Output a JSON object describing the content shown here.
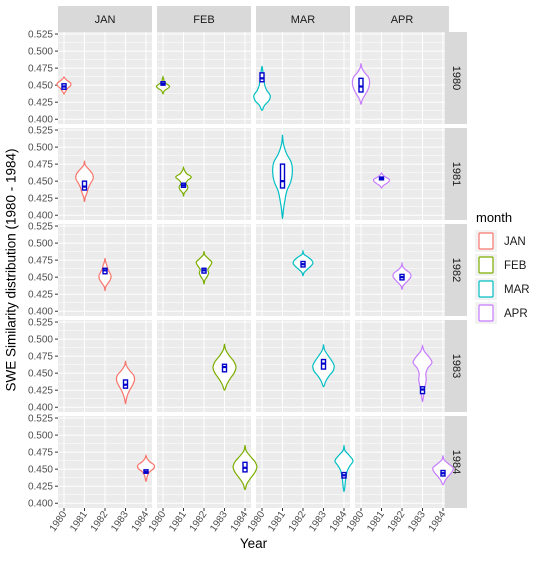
{
  "chart_data": {
    "type": "violin",
    "xlabel": "Year",
    "ylabel": "SWE Similarity distribution (1980 - 1984)",
    "ylim": [
      0.393,
      0.528
    ],
    "y_ticks": [
      "0.400",
      "0.425",
      "0.450",
      "0.475",
      "0.500",
      "0.525"
    ],
    "x_categories": [
      "1980",
      "1981",
      "1982",
      "1983",
      "1984"
    ],
    "column_facets": [
      "JAN",
      "FEB",
      "MAR",
      "APR"
    ],
    "row_facets": [
      "1980",
      "1981",
      "1982",
      "1983",
      "1984"
    ],
    "legend": {
      "title": "month",
      "position": "right",
      "entries": [
        {
          "label": "JAN",
          "color": "#F8766D"
        },
        {
          "label": "FEB",
          "color": "#7CAE00"
        },
        {
          "label": "MAR",
          "color": "#00BFC4"
        },
        {
          "label": "APR",
          "color": "#C77CFF"
        }
      ]
    },
    "box_color": "#0000CC",
    "panel_background": "#EBEBEB",
    "grid_color": "#FFFFFF",
    "strip_background": "#D9D9D9",
    "violins": [
      {
        "row": "1980",
        "month": "JAN",
        "x": "1980",
        "min": 0.437,
        "max": 0.462,
        "q1": 0.444,
        "median": 0.448,
        "q3": 0.452,
        "halfwidth": 0.34,
        "dens": [
          0.2,
          0.5,
          0.9,
          1,
          0.85,
          0.5,
          0.35,
          0.15
        ]
      },
      {
        "row": "1980",
        "month": "FEB",
        "x": "1980",
        "min": 0.437,
        "max": 0.462,
        "q1": 0.45,
        "median": 0.452,
        "q3": 0.455,
        "halfwidth": 0.32,
        "dens": [
          0.1,
          0.15,
          0.3,
          0.7,
          1,
          0.75,
          0.3,
          0.1
        ]
      },
      {
        "row": "1980",
        "month": "MAR",
        "x": "1980",
        "min": 0.413,
        "max": 0.478,
        "q1": 0.455,
        "median": 0.46,
        "q3": 0.468,
        "halfwidth": 0.4,
        "dens": [
          0.1,
          0.15,
          0.25,
          0.35,
          0.6,
          1,
          0.85,
          0.3
        ]
      },
      {
        "row": "1980",
        "month": "APR",
        "x": "1980",
        "min": 0.422,
        "max": 0.482,
        "q1": 0.44,
        "median": 0.448,
        "q3": 0.46,
        "halfwidth": 0.42,
        "dens": [
          0.1,
          0.4,
          0.85,
          1,
          0.95,
          0.75,
          0.45,
          0.15
        ]
      },
      {
        "row": "1981",
        "month": "JAN",
        "x": "1981",
        "min": 0.42,
        "max": 0.48,
        "q1": 0.437,
        "median": 0.442,
        "q3": 0.45,
        "halfwidth": 0.42,
        "dens": [
          0.1,
          0.55,
          0.95,
          1,
          0.7,
          0.45,
          0.3,
          0.1
        ]
      },
      {
        "row": "1981",
        "month": "FEB",
        "x": "1981",
        "min": 0.428,
        "max": 0.47,
        "q1": 0.441,
        "median": 0.444,
        "q3": 0.447,
        "halfwidth": 0.38,
        "dens": [
          0.15,
          0.45,
          1,
          0.55,
          0.3,
          0.55,
          0.45,
          0.1
        ]
      },
      {
        "row": "1981",
        "month": "MAR",
        "x": "1981",
        "min": 0.395,
        "max": 0.518,
        "q1": 0.44,
        "median": 0.45,
        "q3": 0.475,
        "halfwidth": 0.48,
        "dens": [
          0.1,
          0.4,
          0.9,
          1,
          0.85,
          0.45,
          0.25,
          0.1
        ]
      },
      {
        "row": "1981",
        "month": "APR",
        "x": "1981",
        "min": 0.44,
        "max": 0.462,
        "q1": 0.452,
        "median": 0.454,
        "q3": 0.456,
        "halfwidth": 0.38,
        "dens": [
          0.2,
          0.55,
          1,
          0.95,
          0.6,
          0.2
        ]
      },
      {
        "row": "1982",
        "month": "JAN",
        "x": "1982",
        "min": 0.43,
        "max": 0.478,
        "q1": 0.455,
        "median": 0.46,
        "q3": 0.463,
        "halfwidth": 0.3,
        "dens": [
          0.1,
          0.3,
          0.45,
          0.75,
          1,
          0.85,
          0.45,
          0.1
        ]
      },
      {
        "row": "1982",
        "month": "FEB",
        "x": "1982",
        "min": 0.44,
        "max": 0.488,
        "q1": 0.456,
        "median": 0.46,
        "q3": 0.463,
        "halfwidth": 0.38,
        "dens": [
          0.1,
          0.55,
          1,
          0.8,
          0.5,
          0.6,
          0.4,
          0.1
        ]
      },
      {
        "row": "1982",
        "month": "MAR",
        "x": "1982",
        "min": 0.452,
        "max": 0.488,
        "q1": 0.465,
        "median": 0.469,
        "q3": 0.473,
        "halfwidth": 0.48,
        "dens": [
          0.1,
          0.55,
          0.9,
          1,
          0.75,
          0.4,
          0.1
        ]
      },
      {
        "row": "1982",
        "month": "APR",
        "x": "1982",
        "min": 0.432,
        "max": 0.47,
        "q1": 0.446,
        "median": 0.45,
        "q3": 0.454,
        "halfwidth": 0.44,
        "dens": [
          0.1,
          0.45,
          0.9,
          1,
          0.75,
          0.4,
          0.1
        ]
      },
      {
        "row": "1983",
        "month": "JAN",
        "x": "1983",
        "min": 0.405,
        "max": 0.468,
        "q1": 0.428,
        "median": 0.433,
        "q3": 0.44,
        "halfwidth": 0.44,
        "dens": [
          0.1,
          0.45,
          0.9,
          1,
          0.8,
          0.5,
          0.25,
          0.1
        ]
      },
      {
        "row": "1983",
        "month": "FEB",
        "x": "1983",
        "min": 0.425,
        "max": 0.493,
        "q1": 0.452,
        "median": 0.459,
        "q3": 0.463,
        "halfwidth": 0.56,
        "dens": [
          0.1,
          0.4,
          0.8,
          1,
          0.85,
          0.5,
          0.2
        ]
      },
      {
        "row": "1983",
        "month": "MAR",
        "x": "1983",
        "min": 0.43,
        "max": 0.492,
        "q1": 0.456,
        "median": 0.464,
        "q3": 0.47,
        "halfwidth": 0.52,
        "dens": [
          0.1,
          0.4,
          0.75,
          1,
          0.9,
          0.5,
          0.2
        ]
      },
      {
        "row": "1983",
        "month": "APR",
        "x": "1983",
        "min": 0.408,
        "max": 0.49,
        "q1": 0.42,
        "median": 0.426,
        "q3": 0.43,
        "halfwidth": 0.46,
        "dens": [
          0.2,
          0.7,
          1,
          0.55,
          0.35,
          0.4,
          0.3,
          0.15,
          0.1
        ]
      },
      {
        "row": "1984",
        "month": "JAN",
        "x": "1984",
        "min": 0.432,
        "max": 0.47,
        "q1": 0.444,
        "median": 0.446,
        "q3": 0.449,
        "halfwidth": 0.4,
        "dens": [
          0.15,
          0.5,
          1,
          0.95,
          0.45,
          0.2,
          0.1
        ]
      },
      {
        "row": "1984",
        "month": "FEB",
        "x": "1984",
        "min": 0.42,
        "max": 0.485,
        "q1": 0.446,
        "median": 0.452,
        "q3": 0.46,
        "halfwidth": 0.58,
        "dens": [
          0.1,
          0.45,
          0.85,
          1,
          0.8,
          0.45,
          0.15
        ]
      },
      {
        "row": "1984",
        "month": "MAR",
        "x": "1984",
        "min": 0.417,
        "max": 0.485,
        "q1": 0.437,
        "median": 0.441,
        "q3": 0.445,
        "halfwidth": 0.44,
        "dens": [
          0.1,
          0.6,
          1,
          0.65,
          0.35,
          0.25,
          0.15,
          0.1
        ]
      },
      {
        "row": "1984",
        "month": "APR",
        "x": "1984",
        "min": 0.427,
        "max": 0.47,
        "q1": 0.44,
        "median": 0.444,
        "q3": 0.448,
        "halfwidth": 0.5,
        "dens": [
          0.1,
          0.55,
          1,
          0.85,
          0.5,
          0.2
        ]
      }
    ]
  }
}
